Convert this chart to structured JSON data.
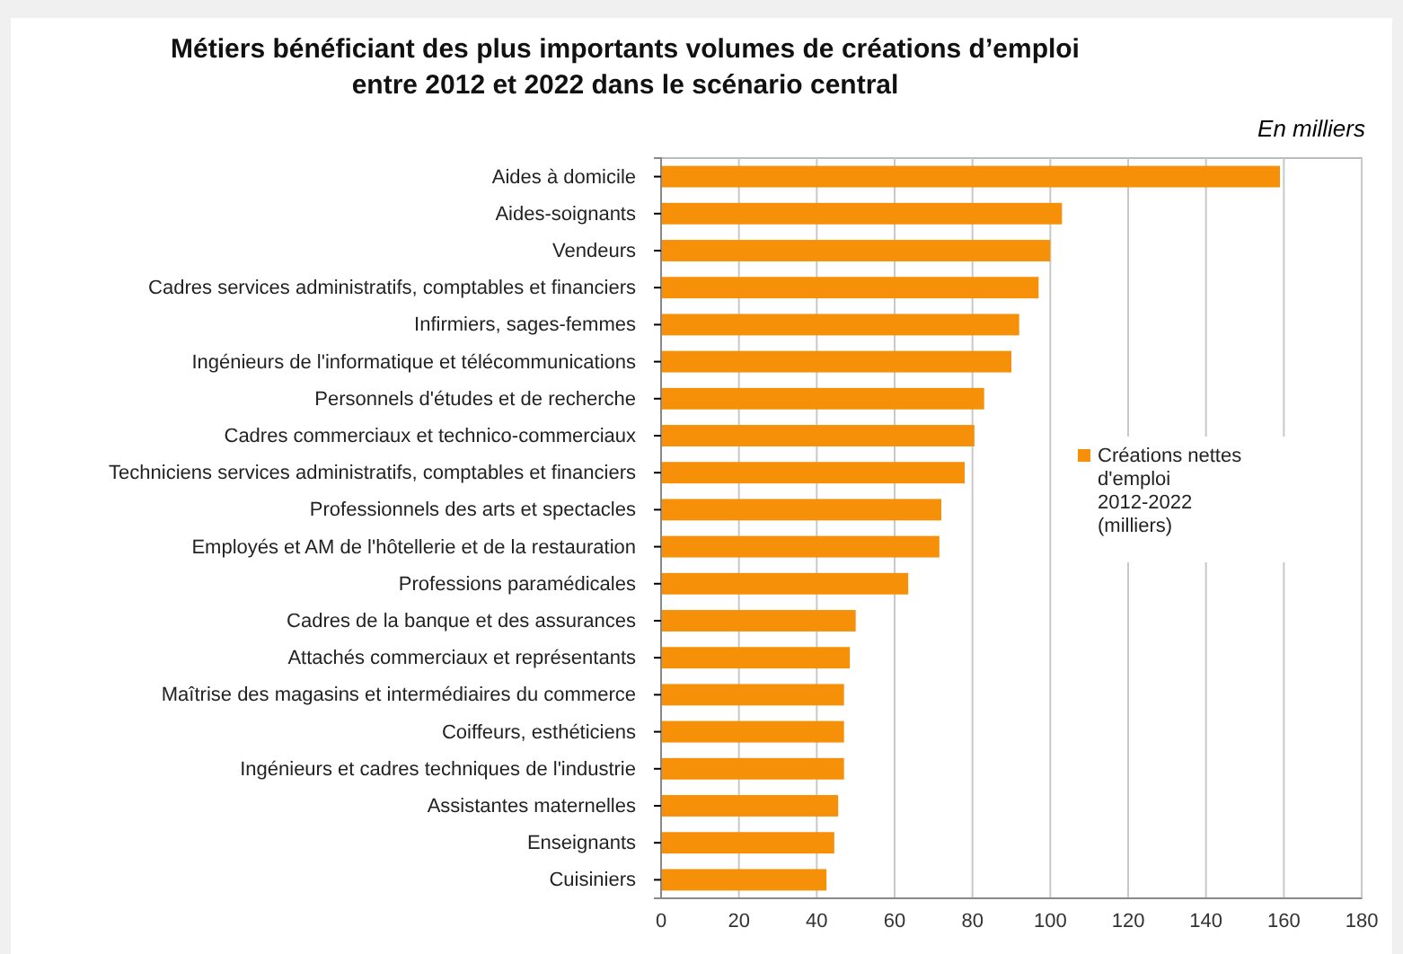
{
  "chart_data": {
    "type": "bar",
    "orientation": "horizontal",
    "title": "Métiers bénéficiant des plus importants volumes de créations d’emploi\nentre 2012 et 2022 dans le scénario central",
    "subtitle": "En milliers",
    "categories": [
      "Aides à domicile",
      "Aides-soignants",
      "Vendeurs",
      "Cadres services administratifs, comptables et financiers",
      "Infirmiers, sages-femmes",
      "Ingénieurs de l'informatique et télécommunications",
      "Personnels d'études et de recherche",
      "Cadres commerciaux et technico-commerciaux",
      "Techniciens services administratifs, comptables et financiers",
      "Professionnels des arts et spectacles",
      "Employés et AM de l'hôtellerie et de la restauration",
      "Professions paramédicales",
      "Cadres de la banque et des assurances",
      "Attachés commerciaux et représentants",
      "Maîtrise des magasins et intermédiaires du commerce",
      "Coiffeurs, esthéticiens",
      "Ingénieurs et cadres techniques de l'industrie",
      "Assistantes maternelles",
      "Enseignants",
      "Cuisiniers"
    ],
    "series": [
      {
        "name": "Créations nettes d'emploi 2012-2022 (milliers)",
        "color": "#f79009",
        "values": [
          159,
          103,
          100,
          97,
          92,
          90,
          83,
          80.5,
          78,
          72,
          71.5,
          63.5,
          50,
          48.5,
          47,
          47,
          47,
          45.5,
          44.5,
          42.5
        ]
      }
    ],
    "xlim": [
      0,
      180
    ],
    "xticks": [
      0,
      20,
      40,
      60,
      80,
      100,
      120,
      140,
      160,
      180
    ],
    "grid": "x",
    "legend": "right"
  }
}
